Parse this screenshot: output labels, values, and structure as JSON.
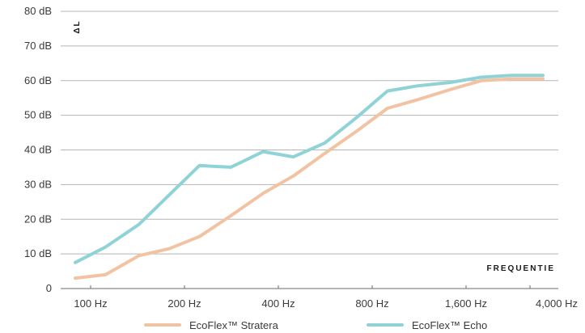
{
  "chart_data": {
    "type": "line",
    "ylabel": "ΔL",
    "xlabel": "FREQUENTIE",
    "y_ticks": [
      "0",
      "10 dB",
      "20 dB",
      "30 dB",
      "40 dB",
      "50 dB",
      "60 dB",
      "70 dB",
      "80 dB"
    ],
    "x_ticks": [
      "100 Hz",
      "200 Hz",
      "400 Hz",
      "800 Hz",
      "1,600 Hz",
      "4,000 Hz"
    ],
    "ylim": [
      0,
      80
    ],
    "grid": true,
    "legend_position": "bottom",
    "x": [
      100,
      125,
      160,
      200,
      250,
      315,
      400,
      500,
      630,
      800,
      1000,
      1250,
      1600,
      2000,
      2500,
      3150
    ],
    "series": [
      {
        "name": "EcoFlex™ Stratera",
        "color": "#f2c3a3",
        "values": [
          3,
          4,
          9.5,
          11.5,
          15,
          21,
          27.5,
          32.5,
          39,
          45.5,
          52,
          54.5,
          57.5,
          60,
          60.5,
          60.5
        ]
      },
      {
        "name": "EcoFlex™ Echo",
        "color": "#8fd3d6",
        "values": [
          7.5,
          12,
          18.5,
          27,
          35.5,
          35,
          39.5,
          38,
          42,
          49.5,
          57,
          58.5,
          59.5,
          61,
          61.5,
          61.5
        ]
      }
    ]
  }
}
